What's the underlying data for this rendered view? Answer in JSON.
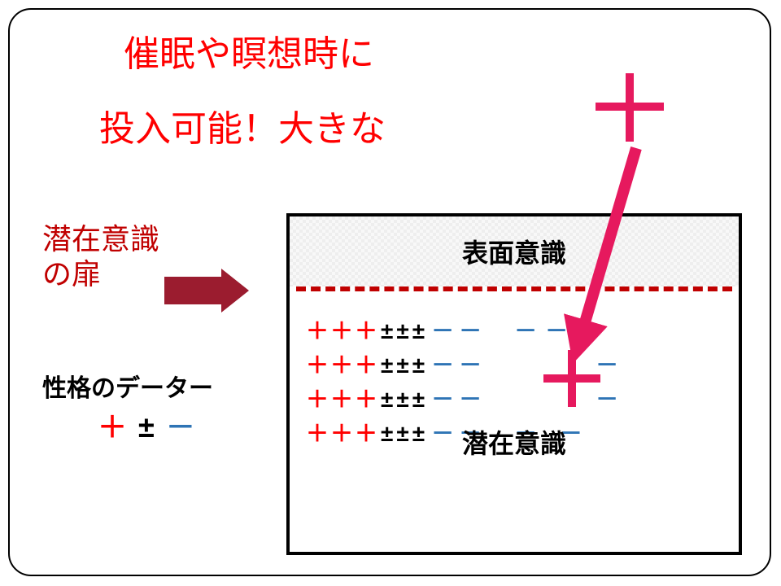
{
  "title": {
    "line1": "催眠や瞑想時に",
    "line2": "投入可能！大きな"
  },
  "doorLabel": {
    "line1": "潜在意識",
    "line2": "の扉"
  },
  "legend": {
    "title": "性格のデーター",
    "plus": "＋",
    "pm": "±",
    "minus": "－"
  },
  "box": {
    "surface": "表面意識",
    "sub": "潜在意識"
  },
  "rows": [
    {
      "plus": "＋＋＋",
      "pm": "±±±",
      "minus1": "－－",
      "minus2": "－－"
    },
    {
      "plus": "＋＋＋",
      "pm": "±±±",
      "minus1": "－－",
      "minus2": "－"
    },
    {
      "plus": "＋＋＋",
      "pm": "±±±",
      "minus1": "－－",
      "minus2": "－"
    },
    {
      "plus": "＋＋＋",
      "pm": "±±±",
      "minus1": "－－",
      "minus2": "－  －"
    }
  ],
  "colors": {
    "red": "#ff0000",
    "darkred": "#c00000",
    "maroon": "#9b1c2f",
    "pink": "#e6195e",
    "blue": "#2e74b5",
    "black": "#000000"
  },
  "arrow": {
    "from": [
      770,
      170
    ],
    "to": [
      700,
      408
    ],
    "width": 14,
    "headW": 44,
    "headL": 40,
    "color": "#e6195e"
  }
}
